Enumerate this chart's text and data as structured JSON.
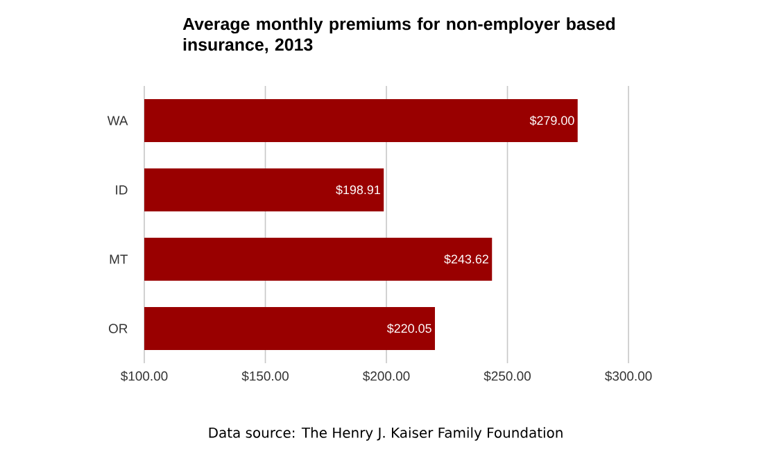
{
  "chart_data": {
    "type": "bar",
    "orientation": "horizontal",
    "title": "Average monthly premiums for non-employer based insurance, 2013",
    "categories": [
      "WA",
      "ID",
      "MT",
      "OR"
    ],
    "values": [
      279.0,
      198.91,
      243.62,
      220.05
    ],
    "value_labels": [
      "$279.00",
      "$198.91",
      "$243.62",
      "$220.05"
    ],
    "color": "#990000",
    "xlim": [
      100,
      300
    ],
    "xticks": [
      {
        "value": 100,
        "label": "$100.00"
      },
      {
        "value": 150,
        "label": "$150.00"
      },
      {
        "value": 200,
        "label": "$200.00"
      },
      {
        "value": 250,
        "label": "$250.00"
      },
      {
        "value": 300,
        "label": "$300.00"
      }
    ],
    "grid": "x",
    "annotations": [
      "Data source: The Henry J. Kaiser Family Foundation"
    ]
  }
}
